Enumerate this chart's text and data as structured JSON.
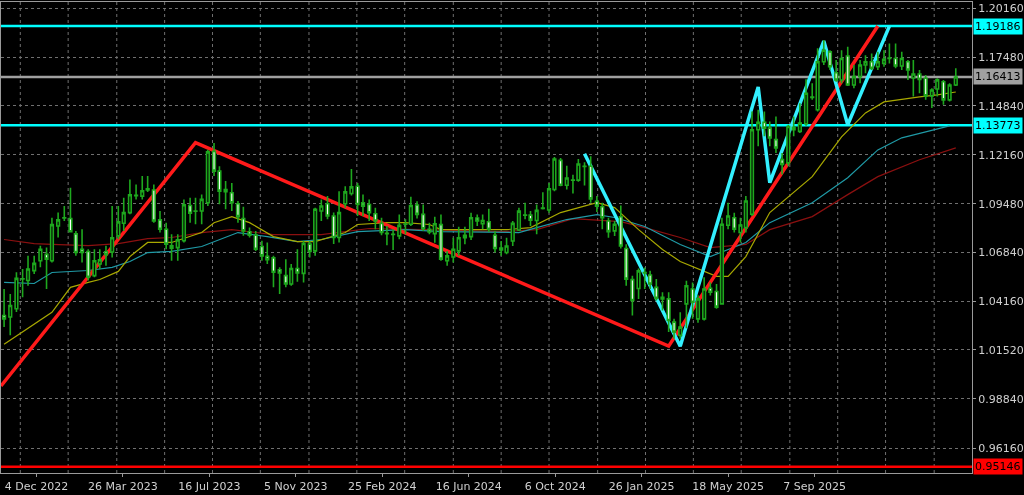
{
  "chart_data": {
    "type": "candlestick",
    "color": "#1ea81e",
    "grid": true,
    "marker": "none",
    "line_style": "solid",
    "xlim": [
      "2022-10-19",
      "2026-03-30"
    ],
    "xticks": [
      {
        "value": "2022-12-04",
        "label": "4 Dec 2022"
      },
      {
        "value": "2023-03-26",
        "label": "26 Mar 2023"
      },
      {
        "value": "2023-07-16",
        "label": "16 Jul 2023"
      },
      {
        "value": "2023-11-05",
        "label": "5 Nov 2023"
      },
      {
        "value": "2024-02-25",
        "label": "25 Feb 2024"
      },
      {
        "value": "2024-06-16",
        "label": "16 Jun 2024"
      },
      {
        "value": "2024-10-06",
        "label": "6 Oct 2024"
      },
      {
        "value": "2025-01-26",
        "label": "26 Jan 2025"
      },
      {
        "value": "2025-05-18",
        "label": "18 May 2025"
      },
      {
        "value": "2025-09-07",
        "label": "7 Sep 2025"
      },
      {
        "value": "2022-11-13",
        "label": null
      },
      {
        "value": "2023-01-14",
        "label": null
      },
      {
        "value": "2023-03-18",
        "label": null
      },
      {
        "value": "2023-05-19",
        "label": null
      },
      {
        "value": "2023-07-20",
        "label": null
      },
      {
        "value": "2023-09-20",
        "label": null
      },
      {
        "value": "2023-11-22",
        "label": null
      },
      {
        "value": "2024-01-23",
        "label": null
      },
      {
        "value": "2024-03-25",
        "label": null
      },
      {
        "value": "2024-05-27",
        "label": null
      },
      {
        "value": "2024-07-28",
        "label": null
      },
      {
        "value": "2024-09-28",
        "label": null
      },
      {
        "value": "2024-11-30",
        "label": null
      },
      {
        "value": "2025-01-31",
        "label": null
      },
      {
        "value": "2025-04-03",
        "label": null
      },
      {
        "value": "2025-06-04",
        "label": null
      },
      {
        "value": "2025-08-06",
        "label": null
      },
      {
        "value": "2025-10-07",
        "label": null
      },
      {
        "value": "2025-12-08",
        "label": null
      },
      {
        "value": "2026-02-09",
        "label": null
      }
    ],
    "ylim": [
      0.948,
      1.205
    ],
    "yticks": [
      {
        "value": 0.9616,
        "label": "0.96160"
      },
      {
        "value": 0.9884,
        "label": "0.98840"
      },
      {
        "value": 1.0152,
        "label": "1.01520"
      },
      {
        "value": 1.0416,
        "label": "1.04160"
      },
      {
        "value": 1.0684,
        "label": "1.06840"
      },
      {
        "value": 1.0948,
        "label": "1.09480"
      },
      {
        "value": 1.1216,
        "label": "1.12160"
      },
      {
        "value": 1.1484,
        "label": "1.14840"
      },
      {
        "value": 1.1748,
        "label": "1.17480"
      },
      {
        "value": 1.2016,
        "label": "1.20160"
      }
    ],
    "ref_lines": [
      {
        "axis": "y",
        "value": 1.19186,
        "label": "1.19186",
        "color": "#00ffff"
      },
      {
        "axis": "y",
        "value": 1.16413,
        "label": "1.16413",
        "color": "#a0a0a0"
      },
      {
        "axis": "y",
        "value": 1.13773,
        "label": "1.13773",
        "color": "#00ffff"
      },
      {
        "axis": "y",
        "value": 0.95146,
        "label": "0.95146",
        "color": "#ff0000"
      }
    ],
    "x": [
      "2022-10-23",
      "2022-10-31",
      "2022-11-08",
      "2022-11-16",
      "2022-11-23",
      "2022-12-01",
      "2022-12-09",
      "2022-12-17",
      "2022-12-24",
      "2023-01-01",
      "2023-01-09",
      "2023-01-17",
      "2023-01-24",
      "2023-02-01",
      "2023-02-09",
      "2023-02-17",
      "2023-02-24",
      "2023-03-04",
      "2023-03-12",
      "2023-03-20",
      "2023-03-27",
      "2023-04-04",
      "2023-04-12",
      "2023-04-20",
      "2023-04-27",
      "2023-05-05",
      "2023-05-13",
      "2023-05-21",
      "2023-05-28",
      "2023-06-05",
      "2023-06-13",
      "2023-06-21",
      "2023-06-28",
      "2023-07-06",
      "2023-07-14",
      "2023-07-22",
      "2023-07-29",
      "2023-08-06",
      "2023-08-14",
      "2023-08-22",
      "2023-08-29",
      "2023-09-06",
      "2023-09-14",
      "2023-09-22",
      "2023-09-29",
      "2023-10-07",
      "2023-10-15",
      "2023-10-23",
      "2023-10-30",
      "2023-11-07",
      "2023-11-15",
      "2023-11-23",
      "2023-11-30",
      "2023-12-08",
      "2023-12-16",
      "2023-12-24",
      "2023-12-31",
      "2024-01-08",
      "2024-01-16",
      "2024-01-24",
      "2024-01-31",
      "2024-02-08",
      "2024-02-16",
      "2024-02-24",
      "2024-03-02",
      "2024-03-10",
      "2024-03-18",
      "2024-03-26",
      "2024-04-02",
      "2024-04-10",
      "2024-04-18",
      "2024-04-26",
      "2024-05-03",
      "2024-05-11",
      "2024-05-19",
      "2024-05-27",
      "2024-06-03",
      "2024-06-11",
      "2024-06-19",
      "2024-06-27",
      "2024-07-04",
      "2024-07-12",
      "2024-07-20",
      "2024-07-28",
      "2024-08-04",
      "2024-08-12",
      "2024-08-20",
      "2024-08-28",
      "2024-09-04",
      "2024-09-12",
      "2024-09-20",
      "2024-09-28",
      "2024-10-05",
      "2024-10-13",
      "2024-10-21",
      "2024-10-29",
      "2024-11-05",
      "2024-11-13",
      "2024-11-21",
      "2024-11-29",
      "2024-12-06",
      "2024-12-14",
      "2024-12-22",
      "2024-12-30",
      "2025-01-06",
      "2025-01-14",
      "2025-01-22",
      "2025-01-30",
      "2025-02-06",
      "2025-02-14",
      "2025-02-22",
      "2025-03-02",
      "2025-03-09",
      "2025-03-17",
      "2025-03-25",
      "2025-04-02",
      "2025-04-09",
      "2025-04-17",
      "2025-04-25",
      "2025-05-03",
      "2025-05-10",
      "2025-05-18",
      "2025-05-26",
      "2025-06-03",
      "2025-06-10",
      "2025-06-18",
      "2025-06-26",
      "2025-07-04",
      "2025-07-11",
      "2025-07-19",
      "2025-07-27",
      "2025-08-04",
      "2025-08-11",
      "2025-08-19",
      "2025-08-27",
      "2025-09-04",
      "2025-09-11",
      "2025-09-19",
      "2025-09-27",
      "2025-10-05",
      "2025-10-12",
      "2025-10-20",
      "2025-10-28",
      "2025-11-05",
      "2025-11-12",
      "2025-11-20",
      "2025-11-28",
      "2025-12-06",
      "2025-12-13",
      "2025-12-21",
      "2025-12-29",
      "2026-01-06",
      "2026-01-13",
      "2026-01-21",
      "2026-01-29",
      "2026-02-06",
      "2026-02-13",
      "2026-02-21",
      "2026-03-01",
      "2026-03-09"
    ],
    "ohlc": [
      [
        1.0339,
        1.0484,
        1.0276,
        1.0321
      ],
      [
        1.0331,
        1.0457,
        1.0231,
        1.0394
      ],
      [
        1.0376,
        1.0575,
        1.0358,
        1.0542
      ],
      [
        1.0539,
        1.0593,
        1.0439,
        1.054
      ],
      [
        1.053,
        1.0665,
        1.0502,
        1.0593
      ],
      [
        1.0584,
        1.0665,
        1.0566,
        1.0624
      ],
      [
        1.0638,
        1.072,
        1.0602,
        1.0701
      ],
      [
        1.0673,
        1.0711,
        1.0484,
        1.0647
      ],
      [
        1.0638,
        1.0873,
        1.0629,
        1.0835
      ],
      [
        1.0828,
        1.0901,
        1.0765,
        1.0861
      ],
      [
        1.0873,
        1.0937,
        1.0855,
        1.0871
      ],
      [
        1.0868,
        1.1036,
        1.0792,
        1.0796
      ],
      [
        1.0785,
        1.0801,
        1.0665,
        1.0683
      ],
      [
        1.0701,
        1.081,
        1.0629,
        1.0683
      ],
      [
        1.0689,
        1.0701,
        1.053,
        1.0548
      ],
      [
        1.0557,
        1.0701,
        1.0548,
        1.0638
      ],
      [
        1.062,
        1.0701,
        1.0593,
        1.0644
      ],
      [
        1.0687,
        1.072,
        1.0611,
        1.0671
      ],
      [
        1.0686,
        1.0937,
        1.0656,
        1.0764
      ],
      [
        1.0774,
        1.0937,
        1.0756,
        1.085
      ],
      [
        1.0843,
        1.0982,
        1.0801,
        1.0901
      ],
      [
        1.0901,
        1.1082,
        1.0892,
        1.0998
      ],
      [
        1.0995,
        1.1054,
        1.0973,
        1.0993
      ],
      [
        1.0991,
        1.11,
        1.0973,
        1.102
      ],
      [
        1.1031,
        1.11,
        1.1013,
        1.1024
      ],
      [
        1.1024,
        1.1054,
        1.0846,
        1.0855
      ],
      [
        1.0861,
        1.091,
        1.0792,
        1.081
      ],
      [
        1.081,
        1.0846,
        1.0701,
        1.0729
      ],
      [
        1.072,
        1.0783,
        1.0638,
        1.0707
      ],
      [
        1.071,
        1.0783,
        1.0638,
        1.0752
      ],
      [
        1.0747,
        1.0973,
        1.0738,
        1.0944
      ],
      [
        1.094,
        1.0982,
        1.0846,
        1.0897
      ],
      [
        1.091,
        1.0982,
        1.0837,
        1.0908
      ],
      [
        1.091,
        1.1,
        1.0837,
        1.0973
      ],
      [
        1.0955,
        1.1244,
        1.0937,
        1.1232
      ],
      [
        1.1235,
        1.1281,
        1.11,
        1.1127
      ],
      [
        1.1127,
        1.1154,
        1.0946,
        1.1018
      ],
      [
        1.1027,
        1.1073,
        1.0919,
        1.1015
      ],
      [
        1.1009,
        1.1063,
        1.091,
        1.0955
      ],
      [
        1.0949,
        1.0964,
        1.0846,
        1.0879
      ],
      [
        1.0868,
        1.0933,
        1.0774,
        1.0801
      ],
      [
        1.0796,
        1.0819,
        1.0765,
        1.0778
      ],
      [
        1.0778,
        1.0801,
        1.0692,
        1.0701
      ],
      [
        1.0716,
        1.0747,
        1.0638,
        1.0665
      ],
      [
        1.0662,
        1.0738,
        1.062,
        1.0644
      ],
      [
        1.0654,
        1.0665,
        1.0493,
        1.0575
      ],
      [
        1.0589,
        1.0602,
        1.0457,
        1.0571
      ],
      [
        1.0557,
        1.0647,
        1.0493,
        1.0511
      ],
      [
        1.0511,
        1.062,
        1.0502,
        1.0596
      ],
      [
        1.0596,
        1.0701,
        1.0524,
        1.0571
      ],
      [
        1.0569,
        1.0747,
        1.052,
        1.0732
      ],
      [
        1.0729,
        1.0747,
        1.0656,
        1.0689
      ],
      [
        1.0692,
        1.0928,
        1.0665,
        1.0919
      ],
      [
        1.091,
        1.0973,
        1.0855,
        1.0937
      ],
      [
        1.0949,
        1.0991,
        1.0864,
        1.0882
      ],
      [
        1.0882,
        1.0901,
        1.0729,
        1.0765
      ],
      [
        1.0765,
        1.1018,
        1.0738,
        1.0901
      ],
      [
        1.0949,
        1.1045,
        1.0927,
        1.1014
      ],
      [
        1.1005,
        1.1139,
        1.0994,
        1.1041
      ],
      [
        1.1045,
        1.1063,
        1.0882,
        1.0945
      ],
      [
        1.0954,
        1.0999,
        1.0882,
        1.0936
      ],
      [
        1.0945,
        1.0973,
        1.0855,
        1.09
      ],
      [
        1.0895,
        1.0927,
        1.081,
        1.0855
      ],
      [
        1.0842,
        1.0873,
        1.0777,
        1.0792
      ],
      [
        1.0788,
        1.0828,
        1.0723,
        1.0786
      ],
      [
        1.0783,
        1.081,
        1.0697,
        1.0781
      ],
      [
        1.0774,
        1.0891,
        1.0755,
        1.0831
      ],
      [
        1.0837,
        1.0864,
        1.0783,
        1.0839
      ],
      [
        1.0837,
        1.0987,
        1.0828,
        1.094
      ],
      [
        1.0942,
        1.0963,
        1.0868,
        1.0891
      ],
      [
        1.0891,
        1.0945,
        1.0801,
        1.0813
      ],
      [
        1.081,
        1.0846,
        1.0783,
        1.0795
      ],
      [
        1.0786,
        1.0878,
        1.0737,
        1.084
      ],
      [
        1.0835,
        1.0891,
        1.0638,
        1.0647
      ],
      [
        1.0638,
        1.0692,
        1.0611,
        1.0665
      ],
      [
        1.0659,
        1.0764,
        1.0629,
        1.0701
      ],
      [
        1.0692,
        1.0824,
        1.0665,
        1.0764
      ],
      [
        1.0764,
        1.0824,
        1.0728,
        1.0777
      ],
      [
        1.077,
        1.09,
        1.0752,
        1.0873
      ],
      [
        1.0871,
        1.0891,
        1.0828,
        1.0855
      ],
      [
        1.084,
        1.0891,
        1.081,
        1.0858
      ],
      [
        1.0851,
        1.0922,
        1.0795,
        1.081
      ],
      [
        1.0777,
        1.0801,
        1.0683,
        1.0705
      ],
      [
        1.0708,
        1.0746,
        1.0665,
        1.0697
      ],
      [
        1.0683,
        1.0764,
        1.0674,
        1.0719
      ],
      [
        1.0746,
        1.0855,
        1.0719,
        1.0842
      ],
      [
        1.0806,
        1.0927,
        1.0801,
        1.0909
      ],
      [
        1.0886,
        1.0954,
        1.0864,
        1.0888
      ],
      [
        1.0887,
        1.0909,
        1.0828,
        1.086
      ],
      [
        1.0858,
        1.0945,
        1.0783,
        1.0913
      ],
      [
        1.0924,
        1.1012,
        1.0918,
        1.0926
      ],
      [
        1.0915,
        1.1063,
        1.09,
        1.1031
      ],
      [
        1.1027,
        1.1204,
        1.1018,
        1.1193
      ],
      [
        1.1186,
        1.1199,
        1.1045,
        1.105
      ],
      [
        1.105,
        1.1157,
        1.1027,
        1.109
      ],
      [
        1.1078,
        1.1108,
        1.1005,
        1.1077
      ],
      [
        1.1078,
        1.1193,
        1.1069,
        1.1166
      ],
      [
        1.1154,
        1.1175,
        1.1049,
        1.1153
      ],
      [
        1.1154,
        1.1208,
        1.0954,
        1.0976
      ],
      [
        1.0963,
        1.0991,
        1.0904,
        1.0936
      ],
      [
        1.0933,
        1.0954,
        1.081,
        1.0873
      ],
      [
        1.0855,
        1.0873,
        1.0764,
        1.0797
      ],
      [
        1.0801,
        1.0855,
        1.0773,
        1.0837
      ],
      [
        1.0878,
        1.094,
        1.0705,
        1.0719
      ],
      [
        1.0705,
        1.0728,
        1.0502,
        1.0538
      ],
      [
        1.0535,
        1.0556,
        1.0339,
        1.0421
      ],
      [
        1.0487,
        1.0596,
        1.043,
        1.0583
      ],
      [
        1.0574,
        1.0601,
        1.0484,
        1.0572
      ],
      [
        1.056,
        1.0583,
        1.0484,
        1.0511
      ],
      [
        1.0493,
        1.0538,
        1.0421,
        1.0433
      ],
      [
        1.0439,
        1.0466,
        1.0366,
        1.043
      ],
      [
        1.043,
        1.0466,
        1.0249,
        1.0312
      ],
      [
        1.0303,
        1.0321,
        1.0212,
        1.0249
      ],
      [
        1.0231,
        1.0357,
        1.0212,
        1.0276
      ],
      [
        1.0403,
        1.0529,
        1.027,
        1.0502
      ],
      [
        1.0484,
        1.052,
        1.0321,
        1.0412
      ],
      [
        1.0321,
        1.045,
        1.03,
        1.043
      ],
      [
        1.0321,
        1.0548,
        1.0312,
        1.0484
      ],
      [
        1.0488,
        1.052,
        1.0448,
        1.0466
      ],
      [
        1.047,
        1.0511,
        1.0376,
        1.0385
      ],
      [
        1.0403,
        1.0873,
        1.0398,
        1.0837
      ],
      [
        1.0832,
        1.0955,
        1.081,
        1.0882
      ],
      [
        1.0873,
        1.09,
        1.0792,
        1.081
      ],
      [
        1.0792,
        1.0873,
        1.0738,
        1.0833
      ],
      [
        1.0819,
        1.0991,
        1.0792,
        1.0964
      ],
      [
        1.0892,
        1.1453,
        1.0882,
        1.1353
      ],
      [
        1.1353,
        1.1462,
        1.1263,
        1.1393
      ],
      [
        1.1393,
        1.1453,
        1.1317,
        1.1362
      ],
      [
        1.1362,
        1.1398,
        1.1263,
        1.1308
      ],
      [
        1.1299,
        1.1425,
        1.1226,
        1.1253
      ],
      [
        1.119,
        1.1226,
        1.1109,
        1.1163
      ],
      [
        1.1172,
        1.138,
        1.1154,
        1.1371
      ],
      [
        1.1366,
        1.1425,
        1.1317,
        1.1353
      ],
      [
        1.1344,
        1.1498,
        1.1335,
        1.1389
      ],
      [
        1.1386,
        1.1628,
        1.1375,
        1.1552
      ],
      [
        1.1529,
        1.1606,
        1.1516,
        1.1531
      ],
      [
        1.1462,
        1.1797,
        1.1453,
        1.1724
      ],
      [
        1.1724,
        1.1842,
        1.1706,
        1.1787
      ],
      [
        1.1778,
        1.1787,
        1.1679,
        1.1697
      ],
      [
        1.1664,
        1.1733,
        1.1615,
        1.1624
      ],
      [
        1.1624,
        1.1787,
        1.1606,
        1.1742
      ],
      [
        1.1755,
        1.1806,
        1.1592,
        1.1597
      ],
      [
        1.1597,
        1.1706,
        1.1579,
        1.1643
      ],
      [
        1.1643,
        1.1733,
        1.1606,
        1.1706
      ],
      [
        1.1706,
        1.176,
        1.1661,
        1.1724
      ],
      [
        1.1724,
        1.1769,
        1.1679,
        1.1688
      ],
      [
        1.1697,
        1.1778,
        1.1679,
        1.1724
      ],
      [
        1.1715,
        1.1787,
        1.1697,
        1.1737
      ],
      [
        1.1742,
        1.1824,
        1.1715,
        1.1744
      ],
      [
        1.1742,
        1.1824,
        1.1688,
        1.1701
      ],
      [
        1.1701,
        1.1778,
        1.1679,
        1.1742
      ],
      [
        1.1724,
        1.1733,
        1.1624,
        1.1679
      ],
      [
        1.1635,
        1.1733,
        1.1534,
        1.1657
      ],
      [
        1.1657,
        1.1679,
        1.1552,
        1.1628
      ],
      [
        1.1634,
        1.1652,
        1.1516,
        1.1538
      ],
      [
        1.1538,
        1.1579,
        1.1471,
        1.157
      ],
      [
        1.1575,
        1.1634,
        1.1534,
        1.1625
      ],
      [
        1.1615,
        1.1625,
        1.1489,
        1.1516
      ],
      [
        1.1516,
        1.1606,
        1.1507,
        1.1597
      ],
      [
        1.1597,
        1.1688,
        1.1592,
        1.1641
      ]
    ],
    "series": [
      {
        "type": "line",
        "color": "#8b1010",
        "x": [
          "2022-10-23",
          "2022-12-01",
          "2022-12-24",
          "2023-02-09",
          "2023-03-20",
          "2023-04-27",
          "2023-05-28",
          "2023-07-06",
          "2023-08-14",
          "2023-10-07",
          "2023-12-08",
          "2024-02-08",
          "2024-04-18",
          "2024-07-28",
          "2024-09-12",
          "2024-10-29",
          "2024-12-30",
          "2025-01-30",
          "2025-03-17",
          "2025-04-25",
          "2025-06-10",
          "2025-07-11",
          "2025-09-04",
          "2025-10-20",
          "2025-11-28",
          "2026-01-21",
          "2026-03-09"
        ],
        "values": [
          1.0754,
          1.0732,
          1.0727,
          1.0721,
          1.0732,
          1.0759,
          1.0765,
          1.0792,
          1.0808,
          1.0781,
          1.0781,
          1.0814,
          1.0808,
          1.0797,
          1.0808,
          1.0868,
          1.0852,
          1.0819,
          1.0765,
          1.071,
          1.0727,
          1.0808,
          1.0879,
          1.0999,
          1.1097,
          1.1189,
          1.1254
        ]
      },
      {
        "type": "line",
        "color": "#1f9aa6",
        "x": [
          "2022-10-23",
          "2022-12-01",
          "2022-12-24",
          "2023-02-09",
          "2023-03-12",
          "2023-04-04",
          "2023-04-27",
          "2023-05-28",
          "2023-07-06",
          "2023-08-22",
          "2023-09-29",
          "2023-11-07",
          "2023-12-08",
          "2024-01-24",
          "2024-03-26",
          "2024-05-11",
          "2024-08-20",
          "2024-09-12",
          "2024-10-21",
          "2024-11-29",
          "2024-12-22",
          "2025-01-30",
          "2025-03-17",
          "2025-04-25",
          "2025-06-10",
          "2025-07-11",
          "2025-09-04",
          "2025-10-20",
          "2025-11-28",
          "2025-12-29",
          "2026-01-29",
          "2026-03-01"
        ],
        "values": [
          1.052,
          1.0514,
          1.0574,
          1.0585,
          1.0602,
          1.0634,
          1.0683,
          1.0689,
          1.0716,
          1.0792,
          1.077,
          1.0743,
          1.0754,
          1.0797,
          1.0808,
          1.0797,
          1.0792,
          1.0819,
          1.0863,
          1.089,
          1.0874,
          1.0825,
          1.0727,
          1.0661,
          1.0738,
          1.0846,
          1.0955,
          1.1091,
          1.1243,
          1.1309,
          1.1341,
          1.1374
        ]
      },
      {
        "type": "line",
        "color": "#a8a800",
        "x": [
          "2022-10-23",
          "2022-12-24",
          "2023-01-17",
          "2023-02-09",
          "2023-02-24",
          "2023-03-20",
          "2023-04-04",
          "2023-04-27",
          "2023-05-28",
          "2023-07-06",
          "2023-07-22",
          "2023-08-14",
          "2023-09-06",
          "2023-10-07",
          "2023-11-07",
          "2023-11-30",
          "2024-01-08",
          "2024-01-24",
          "2024-03-02",
          "2024-03-26",
          "2024-04-26",
          "2024-05-11",
          "2024-06-19",
          "2024-08-04",
          "2024-09-04",
          "2024-10-13",
          "2024-11-29",
          "2024-12-22",
          "2025-01-22",
          "2025-02-22",
          "2025-03-17",
          "2025-05-03",
          "2025-05-18",
          "2025-06-10",
          "2025-07-11",
          "2025-09-04",
          "2025-10-12",
          "2025-11-12",
          "2025-12-06",
          "2026-01-21",
          "2026-02-13",
          "2026-03-09"
        ],
        "values": [
          1.0183,
          1.0357,
          1.0493,
          1.052,
          1.0536,
          1.058,
          1.0661,
          1.0738,
          1.0738,
          1.0792,
          1.0846,
          1.0879,
          1.0846,
          1.077,
          1.0743,
          1.0743,
          1.0792,
          1.0836,
          1.0846,
          1.0846,
          1.0836,
          1.0808,
          1.0808,
          1.0808,
          1.0819,
          1.0901,
          1.0955,
          1.0928,
          1.0808,
          1.07,
          1.0634,
          1.0553,
          1.0553,
          1.0661,
          1.0901,
          1.1097,
          1.1314,
          1.1445,
          1.1505,
          1.1532,
          1.1543,
          1.1559
        ]
      },
      {
        "type": "line",
        "color": "#ff1a1a",
        "x": [
          "2022-10-19",
          "2023-06-28",
          "2025-03-02",
          "2025-11-28"
        ],
        "values": [
          0.9955,
          1.1282,
          1.0172,
          1.1919
        ]
      },
      {
        "type": "line",
        "color": "#33f0ff",
        "x": [
          "2024-11-13",
          "2025-03-17",
          "2025-06-26",
          "2025-07-11",
          "2025-09-19",
          "2025-10-20",
          "2025-12-13"
        ],
        "values": [
          1.1222,
          1.0172,
          1.1586,
          1.1064,
          1.1837,
          1.138,
          1.1918
        ]
      }
    ]
  }
}
